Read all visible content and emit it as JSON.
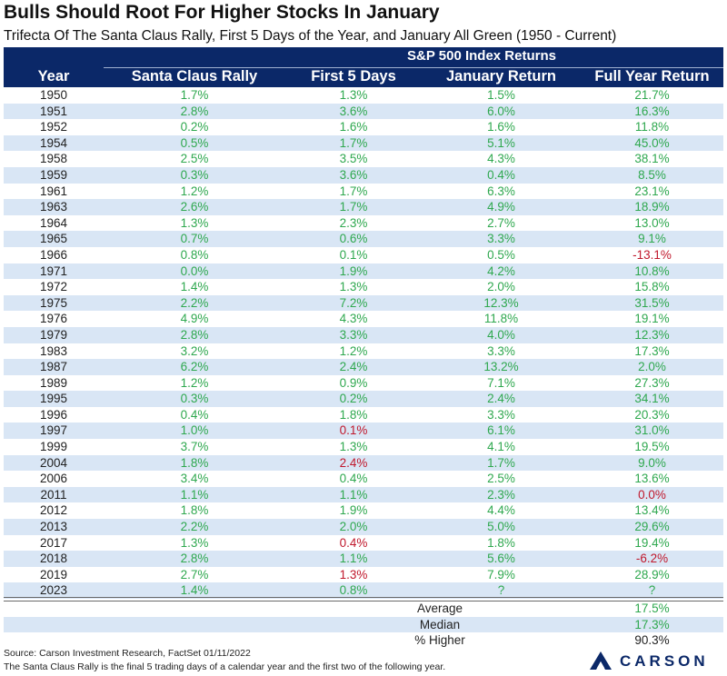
{
  "title": "Bulls Should Root For Higher Stocks In January",
  "subtitle": "Trifecta Of The Santa Claus Rally, First 5 Days of the Year, and January All Green (1950 - Current)",
  "chart_data": {
    "type": "table",
    "group_header": "S&P 500 Index Returns",
    "columns": [
      "Year",
      "Santa Claus Rally",
      "First 5 Days",
      "January Return",
      "Full Year Return"
    ],
    "rows": [
      [
        "1950",
        "1.7%",
        "1.3%",
        "1.5%",
        "21.7%"
      ],
      [
        "1951",
        "2.8%",
        "3.6%",
        "6.0%",
        "16.3%"
      ],
      [
        "1952",
        "0.2%",
        "1.6%",
        "1.6%",
        "11.8%"
      ],
      [
        "1954",
        "0.5%",
        "1.7%",
        "5.1%",
        "45.0%"
      ],
      [
        "1958",
        "2.5%",
        "3.5%",
        "4.3%",
        "38.1%"
      ],
      [
        "1959",
        "0.3%",
        "3.6%",
        "0.4%",
        "8.5%"
      ],
      [
        "1961",
        "1.2%",
        "1.7%",
        "6.3%",
        "23.1%"
      ],
      [
        "1963",
        "2.6%",
        "1.7%",
        "4.9%",
        "18.9%"
      ],
      [
        "1964",
        "1.3%",
        "2.3%",
        "2.7%",
        "13.0%"
      ],
      [
        "1965",
        "0.7%",
        "0.6%",
        "3.3%",
        "9.1%"
      ],
      [
        "1966",
        "0.8%",
        "0.1%",
        "0.5%",
        "-13.1%"
      ],
      [
        "1971",
        "0.0%",
        "1.9%",
        "4.2%",
        "10.8%"
      ],
      [
        "1972",
        "1.4%",
        "1.3%",
        "2.0%",
        "15.8%"
      ],
      [
        "1975",
        "2.2%",
        "7.2%",
        "12.3%",
        "31.5%"
      ],
      [
        "1976",
        "4.9%",
        "4.3%",
        "11.8%",
        "19.1%"
      ],
      [
        "1979",
        "2.8%",
        "3.3%",
        "4.0%",
        "12.3%"
      ],
      [
        "1983",
        "3.2%",
        "1.2%",
        "3.3%",
        "17.3%"
      ],
      [
        "1987",
        "6.2%",
        "2.4%",
        "13.2%",
        "2.0%"
      ],
      [
        "1989",
        "1.2%",
        "0.9%",
        "7.1%",
        "27.3%"
      ],
      [
        "1995",
        "0.3%",
        "0.2%",
        "2.4%",
        "34.1%"
      ],
      [
        "1996",
        "0.4%",
        "1.8%",
        "3.3%",
        "20.3%"
      ],
      [
        "1997",
        "1.0%",
        "0.1%",
        "6.1%",
        "31.0%"
      ],
      [
        "1999",
        "3.7%",
        "1.3%",
        "4.1%",
        "19.5%"
      ],
      [
        "2004",
        "1.8%",
        "2.4%",
        "1.7%",
        "9.0%"
      ],
      [
        "2006",
        "3.4%",
        "0.4%",
        "2.5%",
        "13.6%"
      ],
      [
        "2011",
        "1.1%",
        "1.1%",
        "2.3%",
        "0.0%"
      ],
      [
        "2012",
        "1.8%",
        "1.9%",
        "4.4%",
        "13.4%"
      ],
      [
        "2013",
        "2.2%",
        "2.0%",
        "5.0%",
        "29.6%"
      ],
      [
        "2017",
        "1.3%",
        "0.4%",
        "1.8%",
        "19.4%"
      ],
      [
        "2018",
        "2.8%",
        "1.1%",
        "5.6%",
        "-6.2%"
      ],
      [
        "2019",
        "2.7%",
        "1.3%",
        "7.9%",
        "28.9%"
      ],
      [
        "2023",
        "1.4%",
        "0.8%",
        "?",
        "?"
      ]
    ],
    "red_cells": [
      "1966|4",
      "1997|2",
      "2004|2",
      "2011|4",
      "2017|2",
      "2018|4",
      "2019|2"
    ],
    "summary": [
      {
        "label": "Average",
        "value": "17.5%"
      },
      {
        "label": "Median",
        "value": "17.3%"
      },
      {
        "label": "% Higher",
        "value": "90.3%"
      }
    ],
    "colors": {
      "header_bg": "#0b2868",
      "positive": "#2fa84f",
      "negative": "#c0182c",
      "row_alt": "#d9e6f5"
    }
  },
  "footer": {
    "source": "Source: Carson Investment Research, FactSet 01/11/2022",
    "note": "The Santa Claus Rally is the final 5 trading days of a calendar year and the first two of the following year.",
    "logo_text": "CARSON"
  }
}
